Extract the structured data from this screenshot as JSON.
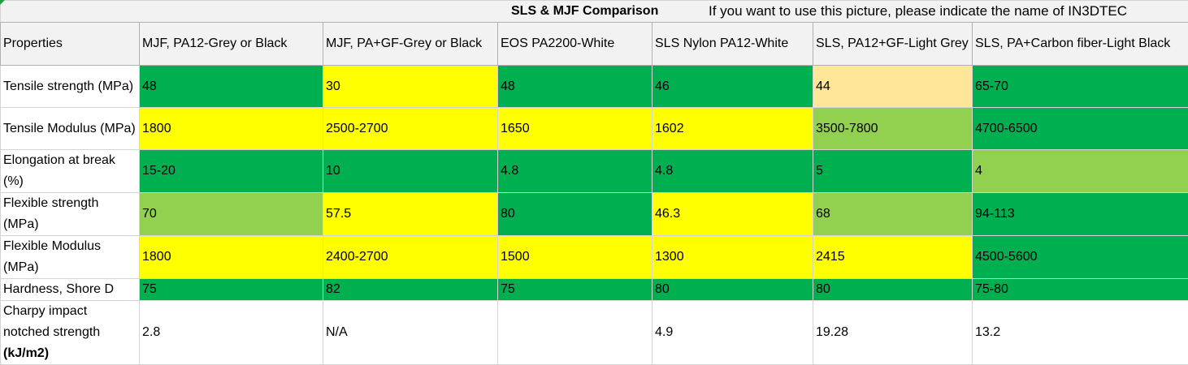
{
  "title": "SLS & MJF Comparison",
  "note": "If you want to use this picture, please indicate the name of IN3DTEC",
  "colors": {
    "dark_green": "#00b050",
    "light_green": "#92d050",
    "yellow": "#ffff00",
    "light_orange": "#ffe699",
    "white": "#ffffff",
    "header_gray": "#f2f2f2"
  },
  "headers": [
    "Properties",
    "MJF, PA12-Grey or Black",
    "MJF, PA+GF-Grey or Black",
    "EOS PA2200-White",
    "SLS Nylon PA12-White",
    "SLS, PA12+GF-Light Grey",
    "SLS, PA+Carbon fiber-Light Black"
  ],
  "rows": [
    {
      "property": "Tensile strength (MPa)",
      "values": [
        "48",
        "30",
        "48",
        "46",
        "44",
        "65-70"
      ],
      "colors": [
        "#00b050",
        "#ffff00",
        "#00b050",
        "#00b050",
        "#ffe699",
        "#00b050"
      ]
    },
    {
      "property": "Tensile Modulus (MPa)",
      "values": [
        "1800",
        "2500-2700",
        "1650",
        "1602",
        "3500-7800",
        "4700-6500"
      ],
      "colors": [
        "#ffff00",
        "#ffff00",
        "#ffff00",
        "#ffff00",
        "#92d050",
        "#00b050"
      ]
    },
    {
      "property": "Elongation at break (%)",
      "values": [
        "15-20",
        "10",
        "4.8",
        "4.8",
        "5",
        "4"
      ],
      "colors": [
        "#00b050",
        "#00b050",
        "#00b050",
        "#00b050",
        "#00b050",
        "#92d050"
      ]
    },
    {
      "property": "Flexible strength (MPa)",
      "values": [
        "70",
        "57.5",
        "80",
        "46.3",
        "68",
        "94-113"
      ],
      "colors": [
        "#92d050",
        "#ffff00",
        "#00b050",
        "#ffff00",
        "#92d050",
        "#00b050"
      ]
    },
    {
      "property": "Flexible Modulus (MPa)",
      "values": [
        "1800",
        "2400-2700",
        "1500",
        "1300",
        "2415",
        "4500-5600"
      ],
      "colors": [
        "#ffff00",
        "#ffff00",
        "#ffff00",
        "#ffff00",
        "#ffff00",
        "#00b050"
      ]
    },
    {
      "property": "Hardness, Shore D",
      "values": [
        "75",
        "82",
        "75",
        "80",
        "80",
        "75-80"
      ],
      "colors": [
        "#00b050",
        "#00b050",
        "#00b050",
        "#00b050",
        "#00b050",
        "#00b050"
      ]
    }
  ],
  "charpy": {
    "property_line1": "Charpy impact notched strength",
    "property_unit": "(kJ/m2)",
    "values": [
      "2.8",
      "N/A",
      "",
      "4.9",
      "19.28",
      "13.2"
    ]
  }
}
